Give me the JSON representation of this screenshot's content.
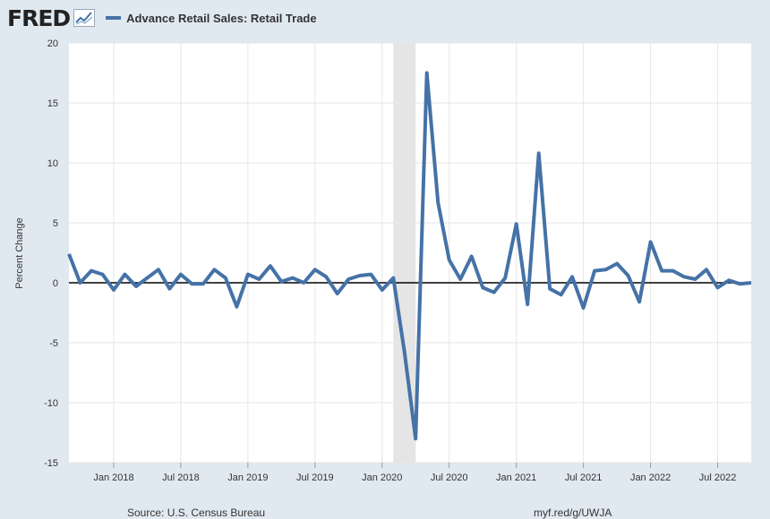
{
  "header": {
    "logo": "FRED",
    "series_label": "Advance Retail Sales: Retail Trade"
  },
  "footer": {
    "source": "Source: U.S. Census Bureau",
    "link": "myf.red/g/UWJA"
  },
  "colors": {
    "line": "#4572a7",
    "background": "#e1e9f0",
    "plot_background": "#ffffff",
    "recession": "#e5e5e5",
    "grid": "#e6e6e6"
  },
  "chart_data": {
    "type": "line",
    "ylabel": "Percent Change",
    "ylim": [
      -15,
      20
    ],
    "yticks": [
      20,
      15,
      10,
      5,
      0,
      -5,
      -10,
      -15
    ],
    "xlim": [
      "2017-09",
      "2022-10"
    ],
    "xticks": [
      {
        "date": "2018-01",
        "label": "Jan 2018"
      },
      {
        "date": "2018-07",
        "label": "Jul 2018"
      },
      {
        "date": "2019-01",
        "label": "Jan 2019"
      },
      {
        "date": "2019-07",
        "label": "Jul 2019"
      },
      {
        "date": "2020-01",
        "label": "Jan 2020"
      },
      {
        "date": "2020-07",
        "label": "Jul 2020"
      },
      {
        "date": "2021-01",
        "label": "Jan 2021"
      },
      {
        "date": "2021-07",
        "label": "Jul 2021"
      },
      {
        "date": "2022-01",
        "label": "Jan 2022"
      },
      {
        "date": "2022-07",
        "label": "Jul 2022"
      }
    ],
    "recession": {
      "start": "2020-02",
      "end": "2020-04"
    },
    "grid": true,
    "zero_line": true,
    "series": [
      {
        "name": "Advance Retail Sales: Retail Trade",
        "x": [
          "2017-09",
          "2017-10",
          "2017-11",
          "2017-12",
          "2018-01",
          "2018-02",
          "2018-03",
          "2018-04",
          "2018-05",
          "2018-06",
          "2018-07",
          "2018-08",
          "2018-09",
          "2018-10",
          "2018-11",
          "2018-12",
          "2019-01",
          "2019-02",
          "2019-03",
          "2019-04",
          "2019-05",
          "2019-06",
          "2019-07",
          "2019-08",
          "2019-09",
          "2019-10",
          "2019-11",
          "2019-12",
          "2020-01",
          "2020-02",
          "2020-03",
          "2020-04",
          "2020-05",
          "2020-06",
          "2020-07",
          "2020-08",
          "2020-09",
          "2020-10",
          "2020-11",
          "2020-12",
          "2021-01",
          "2021-02",
          "2021-03",
          "2021-04",
          "2021-05",
          "2021-06",
          "2021-07",
          "2021-08",
          "2021-09",
          "2021-10",
          "2021-11",
          "2021-12",
          "2022-01",
          "2022-02",
          "2022-03",
          "2022-04",
          "2022-05",
          "2022-06",
          "2022-07",
          "2022-08",
          "2022-09",
          "2022-10"
        ],
        "values": [
          2.4,
          0.0,
          1.0,
          0.7,
          -0.6,
          0.7,
          -0.3,
          0.4,
          1.1,
          -0.5,
          0.7,
          -0.1,
          -0.1,
          1.1,
          0.4,
          -2.0,
          0.7,
          0.3,
          1.4,
          0.1,
          0.4,
          0.0,
          1.1,
          0.5,
          -0.9,
          0.3,
          0.6,
          0.7,
          -0.6,
          0.4,
          -5.8,
          -13.0,
          17.5,
          6.7,
          1.9,
          0.3,
          2.2,
          -0.4,
          -0.8,
          0.4,
          4.9,
          -1.8,
          10.8,
          -0.5,
          -1.0,
          0.5,
          -2.1,
          1.0,
          1.1,
          1.6,
          0.6,
          -1.6,
          3.4,
          1.0,
          1.0,
          0.5,
          0.3,
          1.1,
          -0.4,
          0.2,
          -0.1,
          0.0
        ]
      }
    ]
  }
}
